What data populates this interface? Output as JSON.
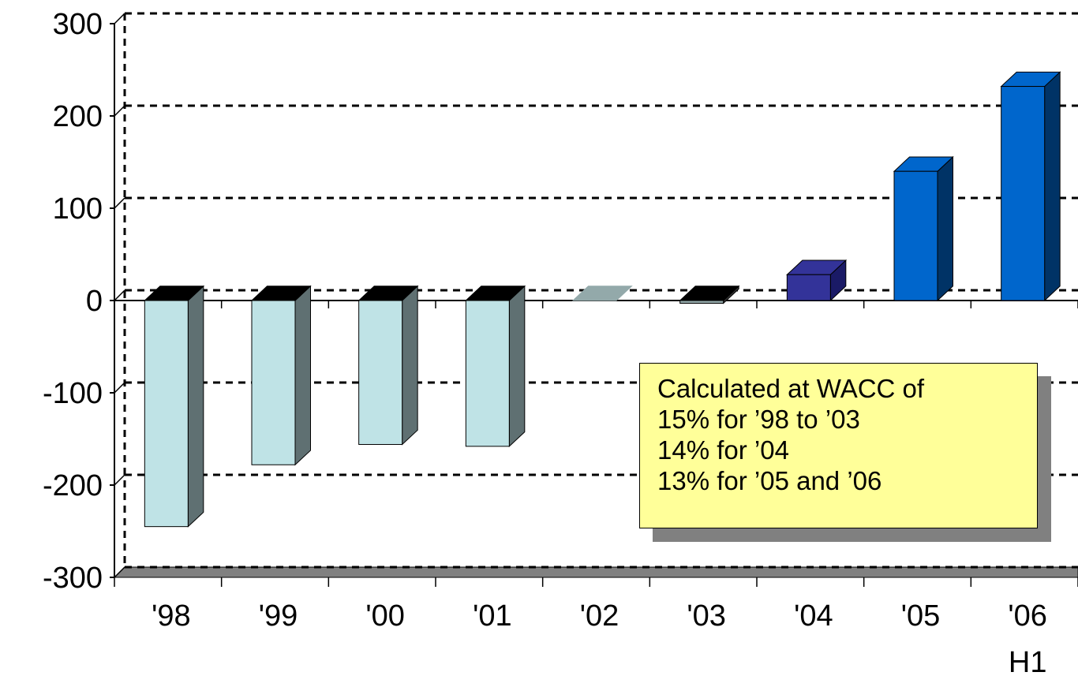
{
  "chart_data": {
    "type": "bar",
    "categories": [
      "'98",
      "'99",
      "'00",
      "'01",
      "'02",
      "'03",
      "'04",
      "'05",
      "'06"
    ],
    "category_sublabels": [
      "",
      "",
      "",
      "",
      "",
      "",
      "",
      "",
      "H1"
    ],
    "values": [
      -245,
      -178,
      -156,
      -158,
      0,
      -3,
      28,
      140,
      232
    ],
    "ylim": [
      -300,
      300
    ],
    "yticks": [
      "300",
      "200",
      "100",
      "0",
      "-100",
      "-200",
      "-300"
    ],
    "grid": true,
    "style": "3d-column",
    "bar_colors": [
      "#bfe3e6",
      "#bfe3e6",
      "#bfe3e6",
      "#bfe3e6",
      "#93a9aa",
      "#93a9aa",
      "#333399",
      "#0066cc",
      "#0066cc"
    ],
    "side_colors": [
      "#5f7072",
      "#5f7072",
      "#5f7072",
      "#5f7072",
      "#667777",
      "#333333",
      "#1a1a66",
      "#003366",
      "#003366"
    ],
    "annotation": {
      "lines": [
        "Calculated at WACC of",
        "15% for ’98 to ’03",
        "14% for ’04",
        "13% for ’05 and ’06"
      ],
      "background": "#ffff99"
    }
  }
}
